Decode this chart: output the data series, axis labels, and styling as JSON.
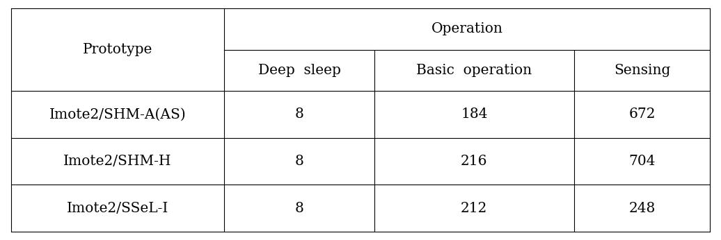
{
  "col_header_top": "Operation",
  "col_header_row1": "Prototype",
  "col_headers": [
    "Deep  sleep",
    "Basic  operation",
    "Sensing"
  ],
  "row_labels": [
    "Imote2/SHM-A(AS)",
    "Imote2/SHM-H",
    "Imote2/SSeL-I"
  ],
  "data": [
    [
      "8",
      "184",
      "672"
    ],
    [
      "8",
      "216",
      "704"
    ],
    [
      "8",
      "212",
      "248"
    ]
  ],
  "bg_color": "#ffffff",
  "line_color": "#000000",
  "text_color": "#000000",
  "font_size": 14.5
}
